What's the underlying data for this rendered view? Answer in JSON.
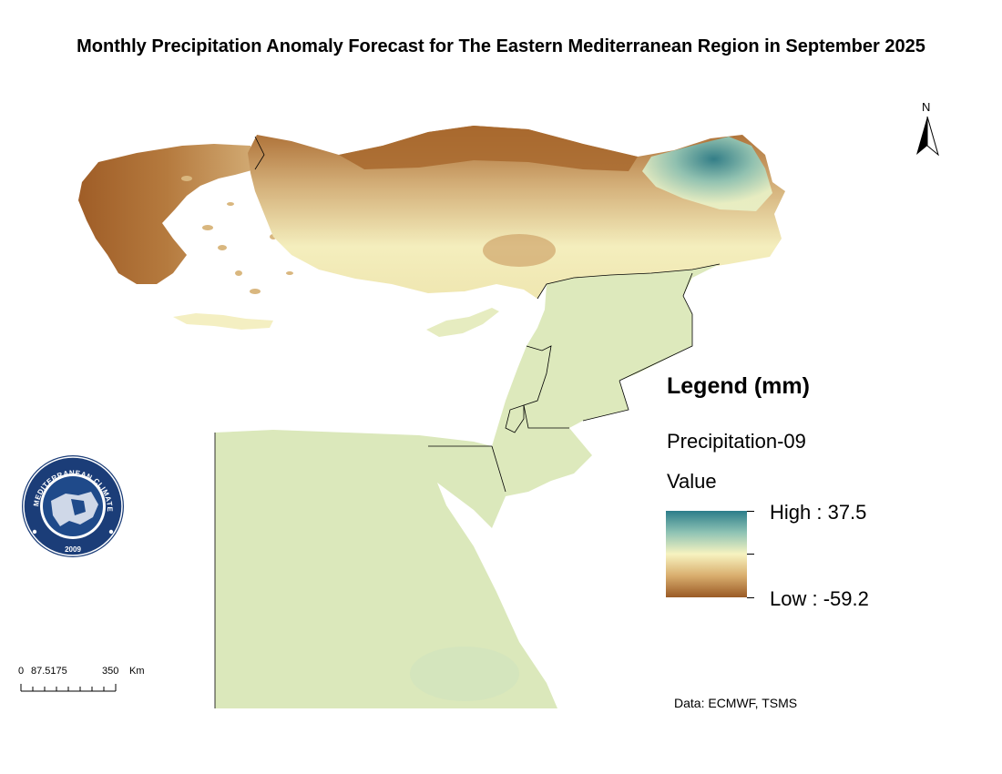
{
  "title": "Monthly Precipitation Anomaly Forecast for The Eastern Mediterranean Region in September 2025",
  "north_arrow": {
    "label": "N"
  },
  "legend": {
    "heading": "Legend (mm)",
    "layer_name": "Precipitation-09",
    "field": "Value",
    "high_label": "High : 37.5",
    "low_label": "Low : -59.2",
    "high_value": 37.5,
    "low_value": -59.2,
    "ramp_colors": [
      "#2c7d8a",
      "#8ec3b4",
      "#f7f3c0",
      "#d9ae6e",
      "#9a5a25"
    ]
  },
  "scale_bar": {
    "labels": [
      "0",
      "87.5175",
      "350",
      "Km"
    ]
  },
  "logo": {
    "ring_text": "EASTERN MEDITERRANEAN CLIMATE CENTRE",
    "year": "2009"
  },
  "credit": "Data: ECMWF, TSMS",
  "colors": {
    "near_zero": "#dde9bc",
    "dry_strong": "#a2622a",
    "dry_moderate": "#d6b27a",
    "neutral_light": "#f3eec0",
    "wet": "#2f7f8c",
    "border": "#000000"
  }
}
